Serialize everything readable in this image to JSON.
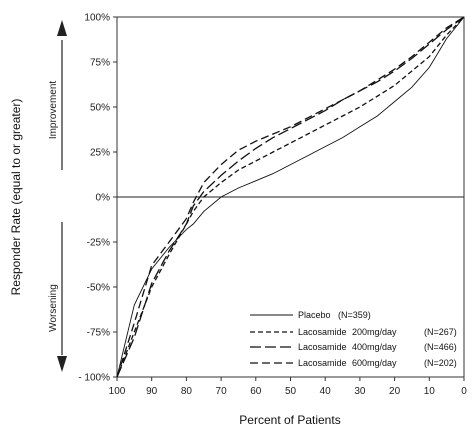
{
  "chart_data": {
    "type": "line",
    "title": "",
    "xlabel": "Percent of Patients",
    "ylabel": "Responder Rate (equal to or greater)",
    "xlim": [
      100,
      0
    ],
    "ylim": [
      -100,
      100
    ],
    "x_ticks": [
      "100",
      "90",
      "80",
      "70",
      "60",
      "50",
      "40",
      "30",
      "20",
      "10",
      "0"
    ],
    "y_ticks": [
      "100%",
      "75%",
      "50%",
      "25%",
      "0%",
      "-25%",
      "-50%",
      "-75%",
      "- 100%"
    ],
    "y_tick_values": [
      100,
      75,
      50,
      25,
      0,
      -25,
      -50,
      -75,
      -100
    ],
    "annotations": {
      "improvement": "Improvement",
      "worsening": "Worsening"
    },
    "grid": false,
    "legend_position": "bottom-right",
    "x": [
      100,
      95,
      90,
      85,
      80,
      78,
      75,
      70,
      65,
      60,
      55,
      50,
      45,
      40,
      35,
      30,
      25,
      20,
      15,
      10,
      5,
      0
    ],
    "series": [
      {
        "name": "Placebo (N=359)",
        "legend_name": "Placebo",
        "legend_n": "(N=359)",
        "style": "solid",
        "values": [
          -100,
          -60,
          -40,
          -28,
          -18,
          -15,
          -8,
          0,
          5,
          9,
          13,
          18,
          23,
          28,
          33,
          39,
          45,
          53,
          61,
          72,
          88,
          100
        ]
      },
      {
        "name": "Lacosamide 200mg/day (N=267)",
        "legend_name": "Lacosamide",
        "legend_dose": "200mg/day",
        "legend_n": "(N=267)",
        "style": "short-dash",
        "values": [
          -100,
          -75,
          -50,
          -32,
          -15,
          -8,
          0,
          8,
          15,
          20,
          25,
          30,
          35,
          40,
          45,
          50,
          56,
          62,
          70,
          78,
          90,
          100
        ]
      },
      {
        "name": "Lacosamide 400mg/day (N=466)",
        "legend_name": "Lacosamide",
        "legend_dose": "400mg/day",
        "legend_n": "(N=466)",
        "style": "long-dash",
        "values": [
          -100,
          -78,
          -48,
          -30,
          -15,
          -5,
          3,
          12,
          20,
          27,
          33,
          38,
          43,
          48,
          54,
          59,
          64,
          70,
          77,
          85,
          93,
          100
        ]
      },
      {
        "name": "Lacosamide 600mg/day (N=202)",
        "legend_name": "Lacosamide",
        "legend_dose": "600mg/day",
        "legend_n": "(N=202)",
        "style": "medium-dash",
        "values": [
          -100,
          -70,
          -38,
          -25,
          -12,
          -3,
          8,
          18,
          26,
          31,
          35,
          39,
          44,
          49,
          54,
          59,
          65,
          71,
          78,
          86,
          94,
          100
        ]
      }
    ]
  },
  "colors": {
    "line": "#111111",
    "axis": "#333333",
    "text": "#222222"
  }
}
